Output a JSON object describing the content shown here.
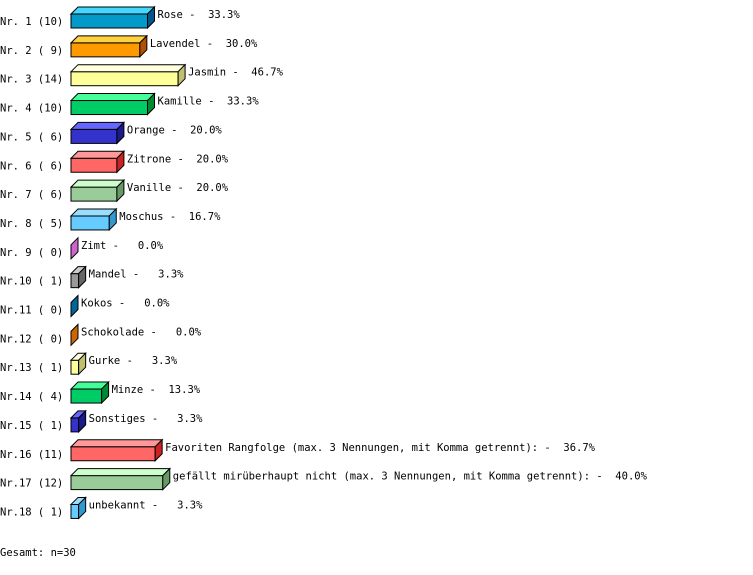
{
  "chart_data": {
    "type": "bar",
    "orientation": "horizontal",
    "style": "3d",
    "unit": "%",
    "categories": [
      "Nr. 1 (10)",
      "Nr. 2 ( 9)",
      "Nr. 3 (14)",
      "Nr. 4 (10)",
      "Nr. 5 ( 6)",
      "Nr. 6 ( 6)",
      "Nr. 7 ( 6)",
      "Nr. 8 ( 5)",
      "Nr. 9 ( 0)",
      "Nr.10 ( 1)",
      "Nr.11 ( 0)",
      "Nr.12 ( 0)",
      "Nr.13 ( 1)",
      "Nr.14 ( 4)",
      "Nr.15 ( 1)",
      "Nr.16 (11)",
      "Nr.17 (12)",
      "Nr.18 ( 1)"
    ],
    "counts": [
      10,
      9,
      14,
      10,
      6,
      6,
      6,
      5,
      0,
      1,
      0,
      0,
      1,
      4,
      1,
      11,
      12,
      1
    ],
    "names": [
      "Rose",
      "Lavendel",
      "Jasmin",
      "Kamille",
      "Orange",
      "Zitrone",
      "Vanille",
      "Moschus",
      "Zimt",
      "Mandel",
      "Kokos",
      "Schokolade",
      "Gurke",
      "Minze",
      "Sonstiges",
      "Favoriten Rangfolge (max. 3 Nennungen, mit Komma getrennt):",
      "gefällt mirüberhaupt nicht (max. 3 Nennungen, mit Komma getrennt):",
      "unbekannt"
    ],
    "values": [
      33.3,
      30.0,
      46.7,
      33.3,
      20.0,
      20.0,
      20.0,
      16.7,
      0.0,
      3.3,
      0.0,
      0.0,
      3.3,
      13.3,
      3.3,
      36.7,
      40.0,
      3.3
    ],
    "data_labels": [
      "Rose -  33.3%",
      "Lavendel -  30.0%",
      "Jasmin -  46.7%",
      "Kamille -  33.3%",
      "Orange -  20.0%",
      "Zitrone -  20.0%",
      "Vanille -  20.0%",
      "Moschus -  16.7%",
      "Zimt -   0.0%",
      "Mandel -   3.3%",
      "Kokos -   0.0%",
      "Schokolade -   0.0%",
      "Gurke -   3.3%",
      "Minze -  13.3%",
      "Sonstiges -   3.3%",
      "Favoriten Rangfolge (max. 3 Nennungen, mit Komma getrennt): -  36.7%",
      "gefällt mirüberhaupt nicht (max. 3 Nennungen, mit Komma getrennt): -  40.0%",
      "unbekannt -   3.3%"
    ],
    "colors": [
      "#0399c9",
      "#ff9900",
      "#ffff99",
      "#00cc66",
      "#3333cc",
      "#ff6666",
      "#99cc99",
      "#66ccff",
      "#cc66cc",
      "#999999",
      "#006699",
      "#cc6600",
      "#ffff99",
      "#00cc66",
      "#3333cc",
      "#ff6666",
      "#99cc99",
      "#66ccff"
    ],
    "top_colors": [
      "#44d8ff",
      "#ffd040",
      "#ffffdd",
      "#44ff99",
      "#6666ff",
      "#ff9999",
      "#ccffcc",
      "#99ddff",
      "#e699e6",
      "#cccccc",
      "#3399cc",
      "#ff9933",
      "#ffffdd",
      "#44ff99",
      "#6666ff",
      "#ff9999",
      "#ccffcc",
      "#99ddff"
    ],
    "side_colors": [
      "#02568a",
      "#b05000",
      "#c0c070",
      "#008833",
      "#1a1a88",
      "#cc2222",
      "#669966",
      "#3399cc",
      "#994499",
      "#666666",
      "#003366",
      "#884400",
      "#c0c070",
      "#008833",
      "#1a1a88",
      "#cc2222",
      "#669966",
      "#3399cc"
    ],
    "grid": false,
    "legend": "none"
  },
  "footer": {
    "total": "Gesamt: n=30"
  }
}
